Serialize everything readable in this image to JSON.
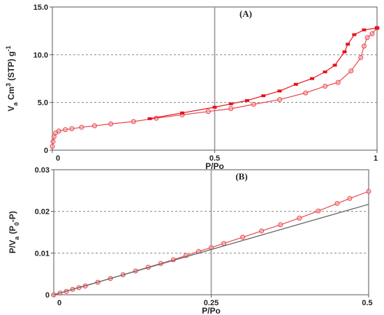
{
  "chart_data": [
    {
      "type": "line",
      "title": "(A)",
      "xlabel": "P/Po",
      "ylabel": "V",
      "ylabel_sub": "a",
      "ylabel_mid": " Cm",
      "ylabel_sup": "3",
      "ylabel_tail": " (STP) g",
      "ylabel_sup2": "-1",
      "xlim": [
        0,
        1
      ],
      "ylim": [
        0,
        15
      ],
      "x_ticks": [
        0,
        0.5,
        1
      ],
      "x_tick_labels": [
        "0",
        "0.5",
        "1"
      ],
      "y_ticks": [
        0,
        5,
        10,
        15
      ],
      "y_tick_labels": [
        "0",
        "5.0",
        "10.0",
        "15.0"
      ],
      "grid": "dashed-horizontal",
      "vline_x": 0.5,
      "series": [
        {
          "role": "adsorption",
          "color": "#e8464b",
          "marker": "open-circle",
          "x": [
            0.0,
            0.002,
            0.005,
            0.01,
            0.02,
            0.04,
            0.06,
            0.09,
            0.13,
            0.18,
            0.25,
            0.32,
            0.4,
            0.48,
            0.55,
            0.62,
            0.7,
            0.78,
            0.84,
            0.88,
            0.92,
            0.95,
            0.96,
            0.97,
            0.985,
            1.0
          ],
          "y": [
            0.4,
            0.9,
            1.4,
            1.8,
            2.0,
            2.15,
            2.25,
            2.4,
            2.55,
            2.75,
            3.0,
            3.35,
            3.7,
            4.05,
            4.35,
            4.8,
            5.3,
            6.0,
            6.7,
            7.1,
            8.3,
            9.7,
            10.9,
            11.8,
            12.2,
            12.8
          ]
        },
        {
          "role": "desorption",
          "color": "#e8101a",
          "marker": "filled-square",
          "x": [
            0.3,
            0.4,
            0.5,
            0.55,
            0.6,
            0.65,
            0.7,
            0.75,
            0.8,
            0.84,
            0.87,
            0.9,
            0.91,
            0.93,
            0.96,
            1.0
          ],
          "y": [
            3.3,
            3.9,
            4.5,
            4.85,
            5.2,
            5.7,
            6.2,
            6.9,
            7.5,
            8.2,
            8.9,
            10.3,
            11.1,
            12.1,
            12.6,
            12.8
          ]
        }
      ]
    },
    {
      "type": "line",
      "title": "(B)",
      "xlabel": "P/Po",
      "ylabel": "P/V",
      "ylabel_sub": "a",
      "ylabel_mid": " (P",
      "ylabel_sub2": "0",
      "ylabel_tail": "-P)",
      "xlim": [
        0,
        0.5
      ],
      "ylim": [
        0,
        0.03
      ],
      "x_ticks": [
        0,
        0.25,
        0.5
      ],
      "x_tick_labels": [
        "0",
        "0.25",
        "0.5"
      ],
      "y_ticks": [
        0,
        0.01,
        0.02,
        0.03
      ],
      "y_tick_labels": [
        "0",
        "0.01",
        "0.02",
        "0.03"
      ],
      "grid": "dashed-horizontal",
      "vline_x": 0.25,
      "series": [
        {
          "role": "data",
          "color": "#e8464b",
          "marker": "open-circle",
          "x": [
            0.0,
            0.01,
            0.02,
            0.03,
            0.04,
            0.05,
            0.07,
            0.09,
            0.11,
            0.13,
            0.15,
            0.17,
            0.19,
            0.21,
            0.23,
            0.25,
            0.27,
            0.3,
            0.33,
            0.36,
            0.39,
            0.42,
            0.45,
            0.47,
            0.5
          ],
          "y": [
            0.0,
            0.0004,
            0.0008,
            0.0013,
            0.0017,
            0.0021,
            0.003,
            0.0039,
            0.0048,
            0.0057,
            0.0066,
            0.0075,
            0.0084,
            0.0094,
            0.0104,
            0.0113,
            0.0123,
            0.0138,
            0.0153,
            0.0168,
            0.0184,
            0.0201,
            0.0219,
            0.0231,
            0.0248
          ]
        },
        {
          "role": "fit",
          "color": "#666666",
          "marker": "none",
          "x": [
            0.0,
            0.5
          ],
          "y": [
            0.0,
            0.0217
          ]
        }
      ]
    }
  ]
}
